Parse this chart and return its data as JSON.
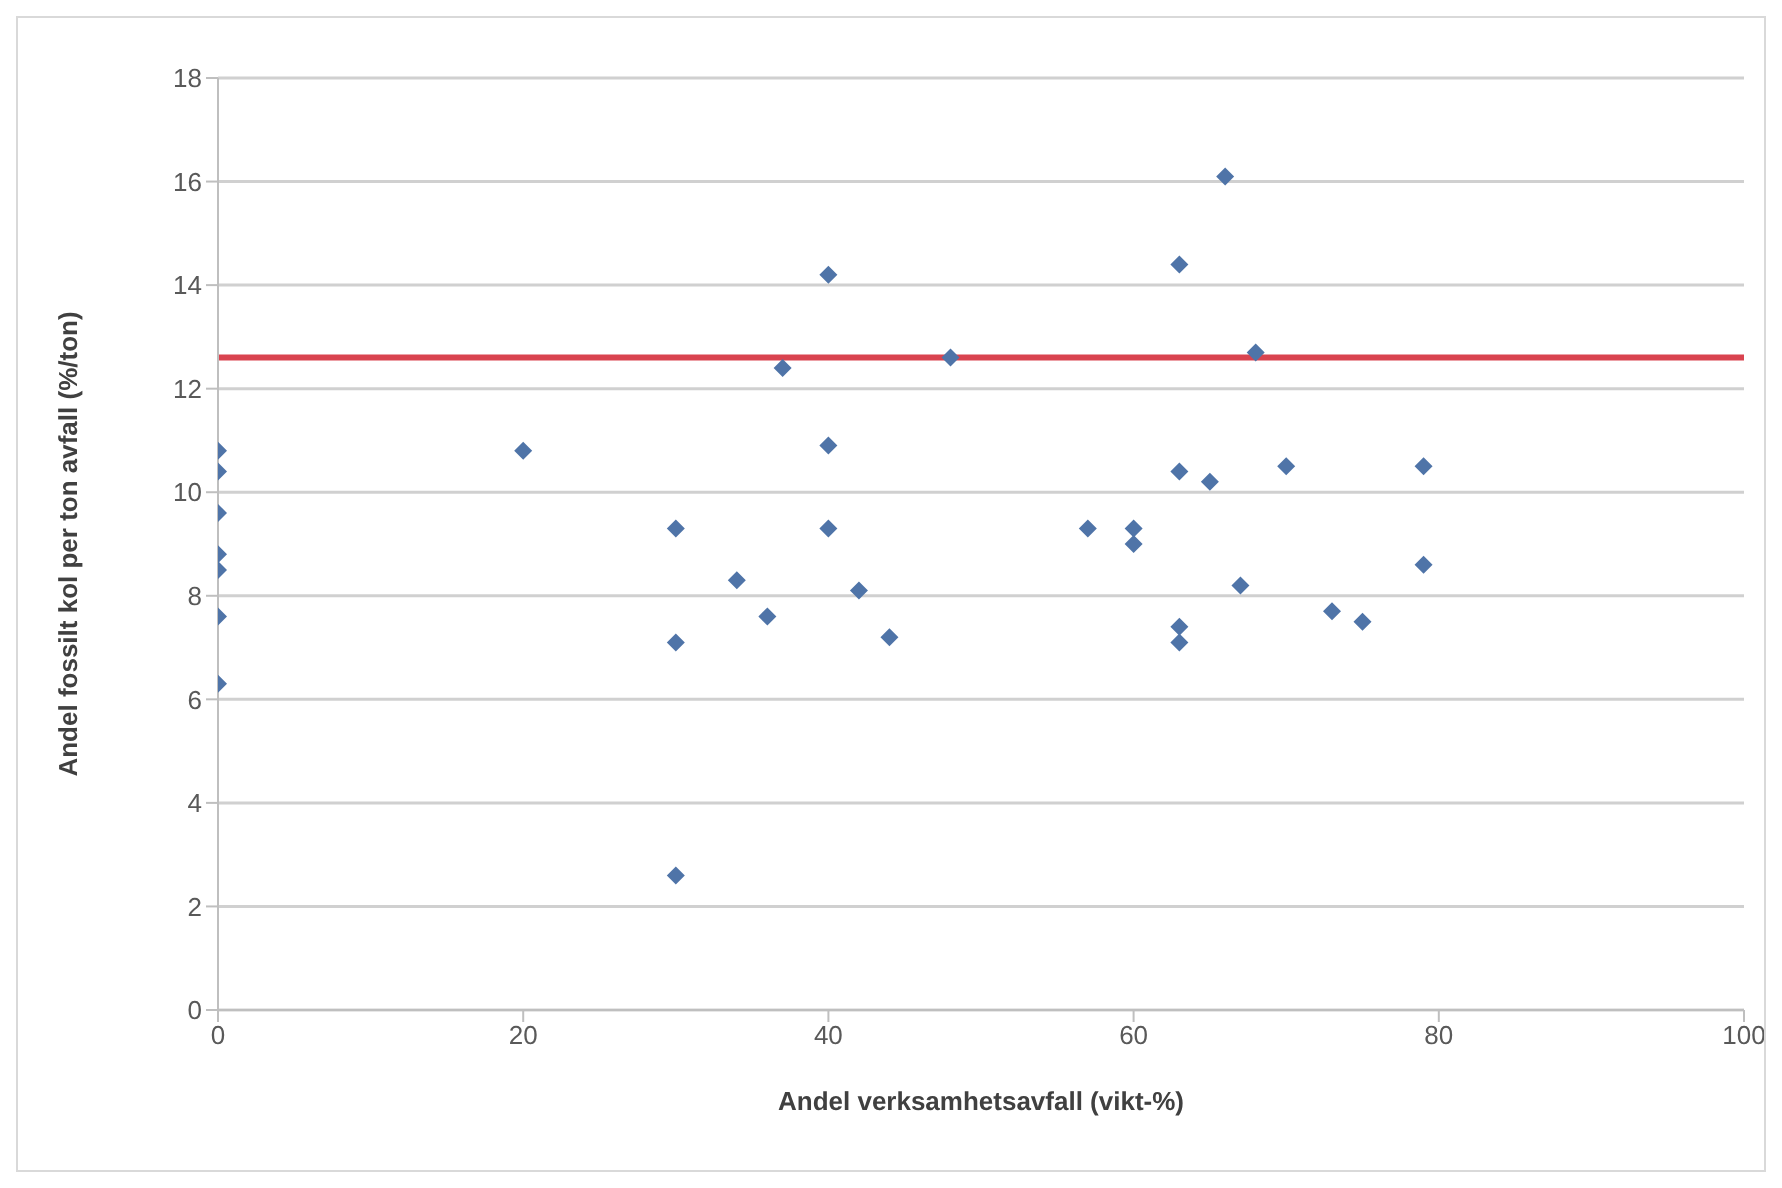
{
  "chart_data": {
    "type": "scatter",
    "xlabel": "Andel verksamhetsavfall (vikt-%)",
    "ylabel": "Andel fossilt kol per ton avfall (%/ton)",
    "x": [
      0,
      0,
      0,
      0,
      0,
      0,
      0,
      20,
      30,
      30,
      30,
      34,
      36,
      37,
      40,
      40,
      40,
      42,
      44,
      48,
      57,
      60,
      60,
      63,
      63,
      63,
      63,
      65,
      66,
      67,
      68,
      70,
      73,
      75,
      79,
      79
    ],
    "series": [
      {
        "color": "#4f74a8",
        "values": [
          10.8,
          10.4,
          9.6,
          8.8,
          8.5,
          7.6,
          6.3,
          10.8,
          9.3,
          7.1,
          2.6,
          8.3,
          7.6,
          12.4,
          14.2,
          10.9,
          9.3,
          8.1,
          7.2,
          12.6,
          9.3,
          9.3,
          9.0,
          14.4,
          10.4,
          7.4,
          7.1,
          10.2,
          16.1,
          8.2,
          12.7,
          10.5,
          7.7,
          7.5,
          10.5,
          8.6
        ]
      }
    ],
    "xlim": [
      0,
      100
    ],
    "xticks": [
      0,
      20,
      40,
      60,
      80,
      100
    ],
    "ylim": [
      0,
      18
    ],
    "yticks": [
      0,
      2,
      4,
      6,
      8,
      10,
      12,
      14,
      16,
      18
    ],
    "ref_lines": [
      {
        "axis": "y",
        "value": 12.6,
        "color": "#d9434f",
        "line_style": "solid"
      }
    ],
    "grid": "y",
    "marker": "diamond",
    "legend": false
  }
}
